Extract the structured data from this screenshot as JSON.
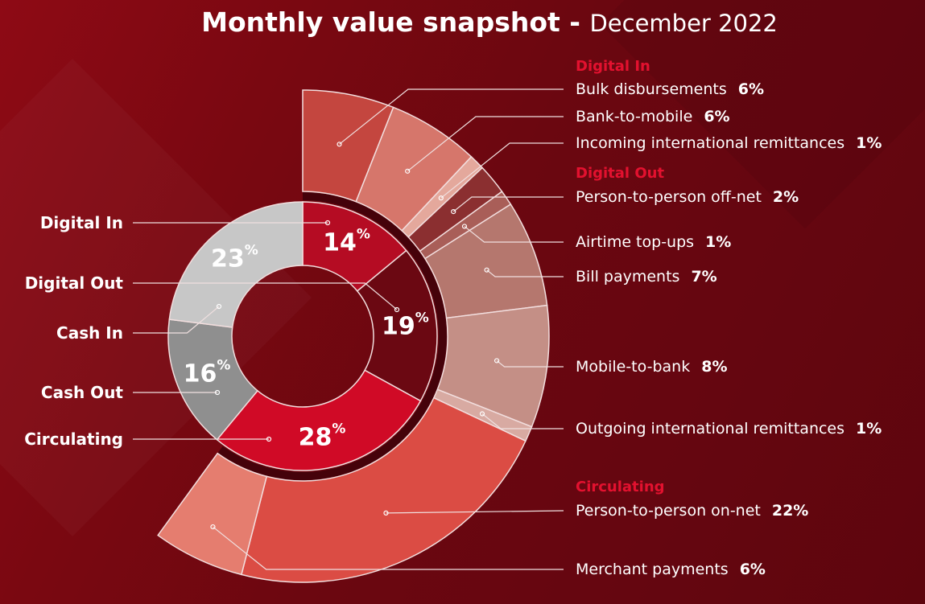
{
  "chart_data": {
    "type": "pie",
    "subtype": "sunburst-donut",
    "title": "Monthly value snapshot -",
    "subtitle": "December 2022",
    "unit": "%",
    "inner": [
      {
        "name": "Digital In",
        "value": 14,
        "color": "#b50c23"
      },
      {
        "name": "Digital Out",
        "value": 19,
        "color": "#6b0812"
      },
      {
        "name": "Circulating",
        "value": 28,
        "color": "#d00a26"
      },
      {
        "name": "Cash Out",
        "value": 16,
        "color": "#8f8f8f"
      },
      {
        "name": "Cash In",
        "value": 23,
        "color": "#c7c7c7"
      }
    ],
    "outer": [
      {
        "group": "Digital In",
        "name": "Bulk disbursements",
        "value": 6,
        "color": "#c4463f"
      },
      {
        "group": "Digital In",
        "name": "Bank-to-mobile",
        "value": 6,
        "color": "#d6766b"
      },
      {
        "group": "Digital In",
        "name": "Incoming international remittances",
        "value": 1,
        "color": "#e4a89c"
      },
      {
        "group": "Digital Out",
        "name": "Person-to-person off-net",
        "value": 2,
        "color": "#8b2f30"
      },
      {
        "group": "Digital Out",
        "name": "Airtime top-ups",
        "value": 1,
        "color": "#a95e58"
      },
      {
        "group": "Digital Out",
        "name": "Bill payments",
        "value": 7,
        "color": "#b5776e"
      },
      {
        "group": "Digital Out",
        "name": "Mobile-to-bank",
        "value": 8,
        "color": "#c48f86"
      },
      {
        "group": "Digital Out",
        "name": "Outgoing international remittances",
        "value": 1,
        "color": "#d8aaa2"
      },
      {
        "group": "Circulating",
        "name": "Person-to-person on-net",
        "value": 22,
        "color": "#db4c44"
      },
      {
        "group": "Circulating",
        "name": "Merchant payments",
        "value": 6,
        "color": "#e57d6f"
      }
    ],
    "group_headings": [
      "Digital In",
      "Digital Out",
      "Circulating"
    ],
    "heading_color": "#e3112f",
    "background_color": "#6a0710"
  }
}
